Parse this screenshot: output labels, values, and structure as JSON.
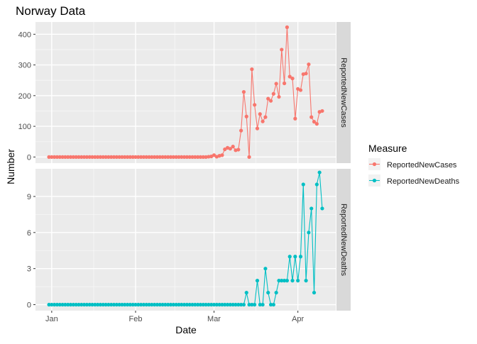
{
  "chart_data": {
    "type": "line",
    "title": "Norway Data",
    "xlabel": "Date",
    "ylabel": "Number",
    "x_ticks": [
      {
        "date": "2020-01-01",
        "label": "Jan"
      },
      {
        "date": "2020-02-01",
        "label": "Feb"
      },
      {
        "date": "2020-03-01",
        "label": "Mar"
      },
      {
        "date": "2020-04-01",
        "label": "Apr"
      }
    ],
    "grid": true,
    "legend": {
      "title": "Measure",
      "position": "right"
    },
    "x": {
      "start_date": "2019-12-31",
      "end_date": "2020-04-10"
    },
    "facets": [
      {
        "strip_label": "ReportedNewCases",
        "series_name": "ReportedNewCases",
        "color": "#F8766D",
        "ylim": [
          -20,
          440
        ],
        "y_ticks": [
          0,
          100,
          200,
          300,
          400
        ],
        "values": [
          0,
          0,
          0,
          0,
          0,
          0,
          0,
          0,
          0,
          0,
          0,
          0,
          0,
          0,
          0,
          0,
          0,
          0,
          0,
          0,
          0,
          0,
          0,
          0,
          0,
          0,
          0,
          0,
          0,
          0,
          0,
          0,
          0,
          0,
          0,
          0,
          0,
          0,
          0,
          0,
          0,
          0,
          0,
          0,
          0,
          0,
          0,
          0,
          0,
          0,
          0,
          0,
          0,
          0,
          0,
          0,
          0,
          0,
          0,
          1,
          2,
          6,
          1,
          4,
          6,
          25,
          30,
          27,
          34,
          22,
          24,
          86,
          212,
          132,
          0,
          286,
          170,
          93,
          140,
          116,
          130,
          190,
          183,
          206,
          239,
          196,
          350,
          240,
          423,
          262,
          256,
          125,
          222,
          218,
          270,
          272,
          302,
          130,
          115,
          108,
          147,
          150
        ]
      },
      {
        "strip_label": "ReportedNewDeaths",
        "series_name": "ReportedNewDeaths",
        "color": "#00BFC4",
        "ylim": [
          -0.5,
          11.3
        ],
        "y_ticks": [
          0,
          3,
          6,
          9
        ],
        "values": [
          0,
          0,
          0,
          0,
          0,
          0,
          0,
          0,
          0,
          0,
          0,
          0,
          0,
          0,
          0,
          0,
          0,
          0,
          0,
          0,
          0,
          0,
          0,
          0,
          0,
          0,
          0,
          0,
          0,
          0,
          0,
          0,
          0,
          0,
          0,
          0,
          0,
          0,
          0,
          0,
          0,
          0,
          0,
          0,
          0,
          0,
          0,
          0,
          0,
          0,
          0,
          0,
          0,
          0,
          0,
          0,
          0,
          0,
          0,
          0,
          0,
          0,
          0,
          0,
          0,
          0,
          0,
          0,
          0,
          0,
          0,
          0,
          0,
          1,
          0,
          0,
          0,
          2,
          0,
          0,
          3,
          1,
          0,
          0,
          1,
          2,
          2,
          2,
          2,
          4,
          2,
          4,
          2,
          4,
          10,
          2,
          6,
          8,
          1,
          10,
          11,
          8
        ]
      }
    ]
  }
}
